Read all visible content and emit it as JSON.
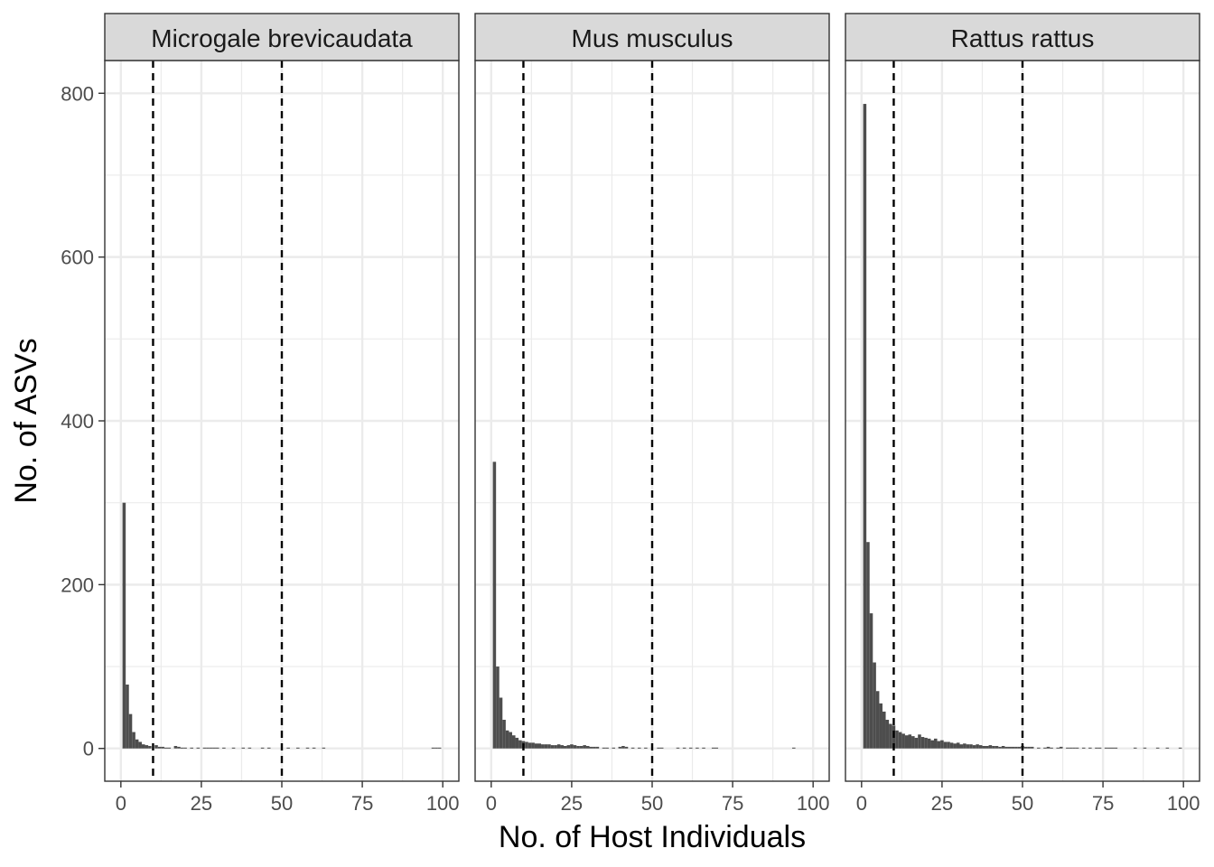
{
  "chart_data": {
    "type": "bar",
    "layout": "faceted histogram, 3 panels side by side, shared y axis",
    "xlabel": "No. of Host Individuals",
    "ylabel": "No. of ASVs",
    "xlim": [
      -5,
      105
    ],
    "ylim": [
      -40,
      840
    ],
    "x_ticks": [
      0,
      25,
      50,
      75,
      100
    ],
    "y_ticks": [
      0,
      200,
      400,
      600,
      800
    ],
    "bin_width": 1,
    "reference_lines": {
      "style": "dashed",
      "x": [
        10,
        50
      ]
    },
    "grid": true,
    "colors": {
      "bar": "#4d4d4d",
      "strip_fill": "#d9d9d9",
      "grid": "#ebebeb",
      "reference_line": "#000000"
    },
    "facets": [
      {
        "label": "Microgale brevicaudata",
        "bins": [
          [
            1,
            300
          ],
          [
            2,
            78
          ],
          [
            3,
            42
          ],
          [
            4,
            20
          ],
          [
            5,
            11
          ],
          [
            6,
            8
          ],
          [
            7,
            5
          ],
          [
            8,
            4
          ],
          [
            9,
            3
          ],
          [
            11,
            4
          ],
          [
            12,
            2
          ],
          [
            13,
            2
          ],
          [
            14,
            1
          ],
          [
            15,
            1
          ],
          [
            17,
            3
          ],
          [
            18,
            2
          ],
          [
            19,
            1
          ],
          [
            20,
            1
          ],
          [
            22,
            1
          ],
          [
            24,
            1
          ],
          [
            26,
            1
          ],
          [
            27,
            1
          ],
          [
            28,
            1
          ],
          [
            29,
            1
          ],
          [
            30,
            1
          ],
          [
            32,
            1
          ],
          [
            35,
            1
          ],
          [
            38,
            1
          ],
          [
            40,
            1
          ],
          [
            44,
            1
          ],
          [
            46,
            1
          ],
          [
            52,
            1
          ],
          [
            55,
            1
          ],
          [
            58,
            1
          ],
          [
            60,
            1
          ],
          [
            63,
            1
          ],
          [
            97,
            1
          ],
          [
            98,
            1
          ],
          [
            99,
            1
          ]
        ]
      },
      {
        "label": "Mus musculus",
        "bins": [
          [
            1,
            350
          ],
          [
            2,
            100
          ],
          [
            3,
            62
          ],
          [
            4,
            35
          ],
          [
            5,
            22
          ],
          [
            6,
            20
          ],
          [
            7,
            16
          ],
          [
            8,
            13
          ],
          [
            9,
            10
          ],
          [
            10,
            9
          ],
          [
            11,
            8
          ],
          [
            12,
            7
          ],
          [
            13,
            7
          ],
          [
            14,
            6
          ],
          [
            15,
            6
          ],
          [
            16,
            5
          ],
          [
            17,
            5
          ],
          [
            18,
            5
          ],
          [
            19,
            4
          ],
          [
            20,
            4
          ],
          [
            21,
            5
          ],
          [
            22,
            4
          ],
          [
            23,
            3
          ],
          [
            24,
            4
          ],
          [
            25,
            5
          ],
          [
            26,
            4
          ],
          [
            27,
            3
          ],
          [
            28,
            3
          ],
          [
            29,
            4
          ],
          [
            30,
            3
          ],
          [
            31,
            2
          ],
          [
            32,
            2
          ],
          [
            33,
            2
          ],
          [
            35,
            1
          ],
          [
            36,
            1
          ],
          [
            38,
            1
          ],
          [
            40,
            2
          ],
          [
            41,
            3
          ],
          [
            42,
            2
          ],
          [
            44,
            1
          ],
          [
            46,
            1
          ],
          [
            48,
            1
          ],
          [
            52,
            1
          ],
          [
            53,
            1
          ],
          [
            58,
            1
          ],
          [
            60,
            1
          ],
          [
            62,
            1
          ],
          [
            64,
            1
          ],
          [
            66,
            1
          ],
          [
            69,
            1
          ],
          [
            70,
            1
          ],
          [
            94,
            1
          ]
        ]
      },
      {
        "label": "Rattus rattus",
        "bins": [
          [
            1,
            787
          ],
          [
            2,
            252
          ],
          [
            3,
            165
          ],
          [
            4,
            105
          ],
          [
            5,
            70
          ],
          [
            6,
            55
          ],
          [
            7,
            45
          ],
          [
            8,
            35
          ],
          [
            9,
            30
          ],
          [
            10,
            28
          ],
          [
            11,
            22
          ],
          [
            12,
            20
          ],
          [
            13,
            18
          ],
          [
            14,
            16
          ],
          [
            15,
            17
          ],
          [
            16,
            15
          ],
          [
            17,
            13
          ],
          [
            18,
            17
          ],
          [
            19,
            14
          ],
          [
            20,
            13
          ],
          [
            21,
            12
          ],
          [
            22,
            10
          ],
          [
            23,
            12
          ],
          [
            24,
            9
          ],
          [
            25,
            10
          ],
          [
            26,
            8
          ],
          [
            27,
            8
          ],
          [
            28,
            7
          ],
          [
            29,
            6
          ],
          [
            30,
            7
          ],
          [
            31,
            5
          ],
          [
            32,
            6
          ],
          [
            33,
            5
          ],
          [
            34,
            5
          ],
          [
            35,
            4
          ],
          [
            36,
            5
          ],
          [
            37,
            4
          ],
          [
            38,
            3
          ],
          [
            39,
            3
          ],
          [
            40,
            4
          ],
          [
            41,
            3
          ],
          [
            42,
            3
          ],
          [
            43,
            2
          ],
          [
            44,
            3
          ],
          [
            45,
            2
          ],
          [
            46,
            2
          ],
          [
            47,
            2
          ],
          [
            48,
            2
          ],
          [
            49,
            2
          ],
          [
            50,
            3
          ],
          [
            51,
            2
          ],
          [
            52,
            2
          ],
          [
            53,
            2
          ],
          [
            55,
            1
          ],
          [
            57,
            1
          ],
          [
            58,
            2
          ],
          [
            59,
            1
          ],
          [
            61,
            1
          ],
          [
            62,
            2
          ],
          [
            64,
            1
          ],
          [
            65,
            1
          ],
          [
            66,
            1
          ],
          [
            67,
            1
          ],
          [
            69,
            1
          ],
          [
            71,
            1
          ],
          [
            73,
            1
          ],
          [
            74,
            1
          ],
          [
            76,
            1
          ],
          [
            77,
            1
          ],
          [
            78,
            1
          ],
          [
            79,
            1
          ],
          [
            85,
            1
          ],
          [
            88,
            1
          ],
          [
            92,
            1
          ],
          [
            95,
            1
          ],
          [
            99,
            1
          ]
        ]
      }
    ]
  }
}
